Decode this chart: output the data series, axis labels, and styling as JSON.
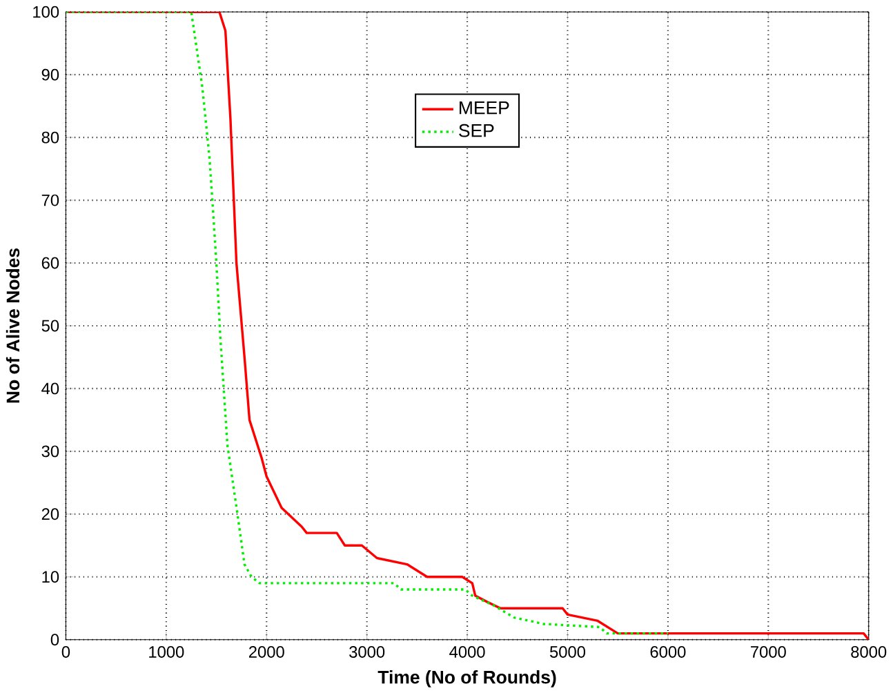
{
  "chart_data": {
    "type": "line",
    "xlabel": "Time (No of Rounds)",
    "ylabel": "No of Alive Nodes",
    "xlim": [
      0,
      8000
    ],
    "ylim": [
      0,
      100
    ],
    "xticks": [
      0,
      1000,
      2000,
      3000,
      4000,
      5000,
      6000,
      7000,
      8000
    ],
    "yticks": [
      0,
      10,
      20,
      30,
      40,
      50,
      60,
      70,
      80,
      90,
      100
    ],
    "grid": true,
    "legend": "top",
    "series": [
      {
        "name": "MEEP",
        "color": "#ff0000",
        "line_style": "solid",
        "x": [
          0,
          1530,
          1590,
          1640,
          1700,
          1780,
          1830,
          1950,
          2000,
          2150,
          2350,
          2400,
          2700,
          2780,
          2950,
          3100,
          3400,
          3600,
          3950,
          4050,
          4080,
          4200,
          4330,
          4950,
          5000,
          5300,
          5500,
          7950,
          8000
        ],
        "values": [
          100,
          100,
          97,
          83,
          60,
          45,
          35,
          29,
          26,
          21,
          18,
          17,
          17,
          15,
          15,
          13,
          12,
          10,
          10,
          9,
          7,
          6,
          5,
          5,
          4,
          3,
          1,
          1,
          0
        ]
      },
      {
        "name": "SEP",
        "color": "#00ee00",
        "line_style": "dotted",
        "x": [
          0,
          1250,
          1360,
          1430,
          1460,
          1500,
          1540,
          1610,
          1710,
          1780,
          1850,
          1930,
          3270,
          3340,
          3980,
          4050,
          4260,
          4470,
          4620,
          4760,
          5320,
          5390,
          6000
        ],
        "values": [
          100,
          100,
          88,
          77,
          70,
          60,
          48,
          31,
          20,
          12,
          10,
          9,
          9,
          8,
          8,
          7,
          5.5,
          3.5,
          3,
          2.5,
          2,
          1,
          1
        ]
      }
    ]
  }
}
